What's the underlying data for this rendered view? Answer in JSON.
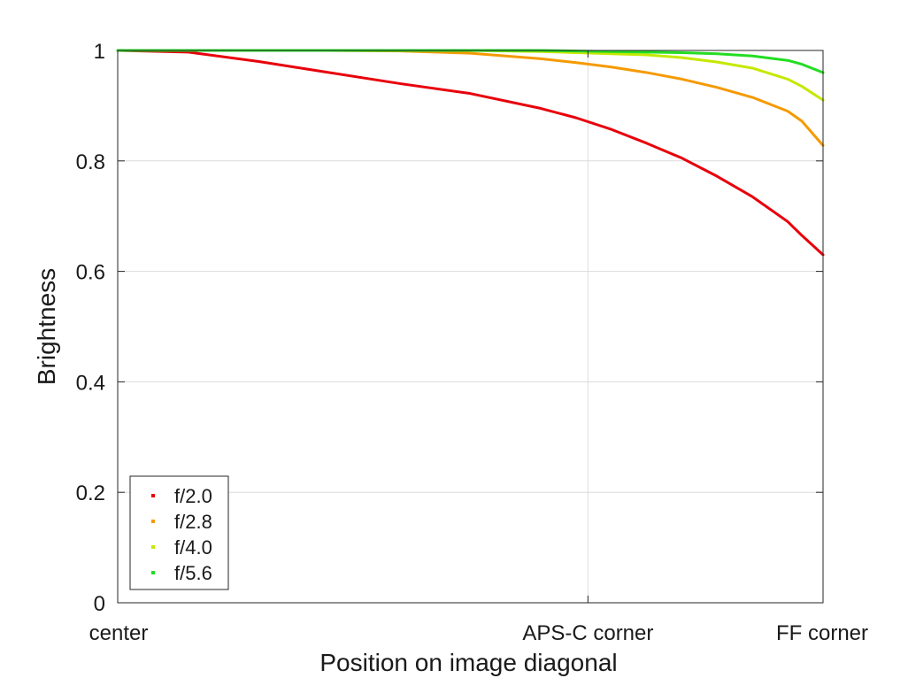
{
  "chart_data": {
    "type": "line",
    "xlabel": "Position on image diagonal",
    "ylabel": "Brightness",
    "xlim": [
      0,
      1
    ],
    "ylim": [
      0,
      1
    ],
    "grid": true,
    "legend_position": "bottom-left",
    "x_ticks": [
      {
        "value": 0,
        "label": "center"
      },
      {
        "value": 0.6667,
        "label": "APS-C corner"
      },
      {
        "value": 1,
        "label": "FF corner"
      }
    ],
    "y_ticks": [
      {
        "value": 0,
        "label": "0"
      },
      {
        "value": 0.2,
        "label": "0.2"
      },
      {
        "value": 0.4,
        "label": "0.4"
      },
      {
        "value": 0.6,
        "label": "0.6"
      },
      {
        "value": 0.8,
        "label": "0.8"
      },
      {
        "value": 1,
        "label": "1"
      }
    ],
    "x": [
      0,
      0.1,
      0.2,
      0.3,
      0.4,
      0.5,
      0.6,
      0.65,
      0.7,
      0.75,
      0.8,
      0.85,
      0.9,
      0.95,
      0.97,
      1.0
    ],
    "series": [
      {
        "name": "f/2.0",
        "color": "#e8000b",
        "values": [
          1.0,
          0.997,
          0.98,
          0.96,
          0.94,
          0.922,
          0.895,
          0.878,
          0.857,
          0.832,
          0.805,
          0.772,
          0.735,
          0.69,
          0.665,
          0.63
        ]
      },
      {
        "name": "f/2.8",
        "color": "#f59a00",
        "values": [
          1.0,
          1.0,
          1.0,
          1.0,
          0.999,
          0.995,
          0.985,
          0.978,
          0.97,
          0.96,
          0.948,
          0.933,
          0.915,
          0.89,
          0.872,
          0.828
        ]
      },
      {
        "name": "f/4.0",
        "color": "#c6e800",
        "values": [
          1.0,
          1.0,
          1.0,
          1.0,
          1.0,
          1.0,
          0.998,
          0.996,
          0.994,
          0.992,
          0.987,
          0.979,
          0.968,
          0.948,
          0.935,
          0.91
        ]
      },
      {
        "name": "f/5.6",
        "color": "#22dd22",
        "values": [
          1.0,
          1.0,
          1.0,
          1.0,
          1.0,
          1.0,
          1.0,
          0.999,
          0.998,
          0.997,
          0.996,
          0.994,
          0.99,
          0.982,
          0.975,
          0.96
        ]
      }
    ]
  }
}
